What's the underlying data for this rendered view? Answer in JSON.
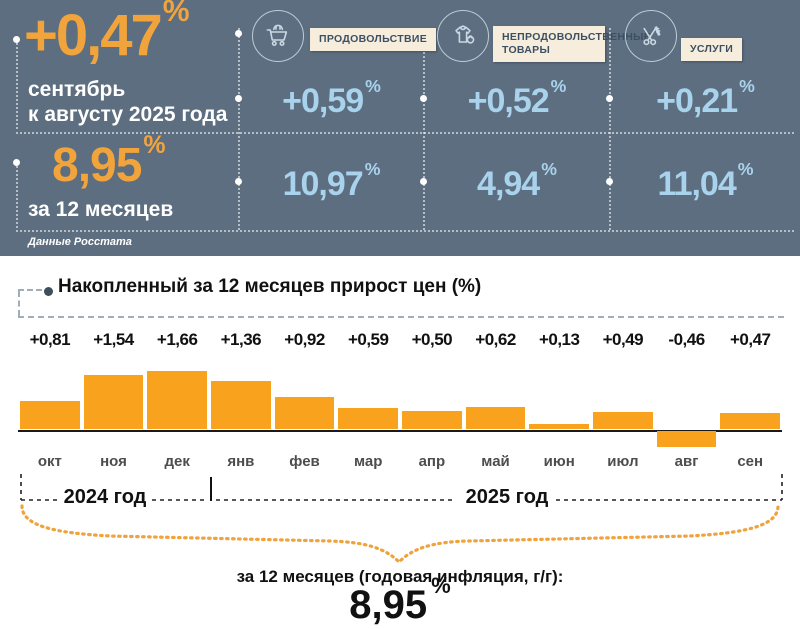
{
  "header": {
    "source_note": "Данные Росстата",
    "percent_sign": "%",
    "main": {
      "monthly_value": "+0,47",
      "period_line1": "сентябрь",
      "period_line2": "к августу 2025 года",
      "annual_value": "8,95",
      "annual_label": "за 12 месяцев"
    },
    "categories": [
      {
        "icon": "shopping-cart",
        "label": "ПРОДОВОЛЬСТВИЕ",
        "monthly": "+0,59",
        "annual": "10,97"
      },
      {
        "icon": "clothing",
        "label": "НЕПРОДОВОЛЬСТВЕННЫЕ ТОВАРЫ",
        "monthly": "+0,52",
        "annual": "4,94"
      },
      {
        "icon": "scissors",
        "label": "УСЛУГИ",
        "monthly": "+0,21",
        "annual": "11,04"
      }
    ]
  },
  "chart": {
    "title": "Накопленный за 12 месяцев прирост цен (%)",
    "year_left": "2024 год",
    "year_right": "2025 год",
    "footer_label": "за 12 месяцев (годовая инфляция, г/г):",
    "footer_value": "8,95",
    "footer_percent": "%"
  },
  "chart_data": {
    "type": "bar",
    "title": "Накопленный за 12 месяцев прирост цен (%)",
    "categories": [
      "окт",
      "ноя",
      "дек",
      "янв",
      "фев",
      "мар",
      "апр",
      "май",
      "июн",
      "июл",
      "авг",
      "сен"
    ],
    "values": [
      0.81,
      1.54,
      1.66,
      1.36,
      0.92,
      0.59,
      0.5,
      0.62,
      0.13,
      0.49,
      -0.46,
      0.47
    ],
    "value_labels": [
      "+0,81",
      "+1,54",
      "+1,66",
      "+1,36",
      "+0,92",
      "+0,59",
      "+0,50",
      "+0,62",
      "+0,13",
      "+0,49",
      "-0,46",
      "+0,47"
    ],
    "xlabel": "",
    "ylabel": "",
    "ylim": [
      -0.6,
      1.8
    ],
    "grid": false,
    "bar_color": "#F9A21D",
    "year_groups": [
      {
        "label": "2024 год",
        "months": [
          "окт",
          "ноя",
          "дек"
        ]
      },
      {
        "label": "2025 год",
        "months": [
          "янв",
          "фев",
          "мар",
          "апр",
          "май",
          "июн",
          "июл",
          "авг",
          "сен"
        ]
      }
    ],
    "annual_total_label": "за 12 месяцев (годовая инфляция, г/г):",
    "annual_total_value": "8,95 %"
  },
  "colors": {
    "panel_bg": "#5C6E7F",
    "accent_orange": "#F2A43C",
    "bar_orange": "#F9A21D",
    "value_blue": "#A9D2EC",
    "label_bg": "#F7EDDC",
    "label_text": "#3C5064"
  }
}
